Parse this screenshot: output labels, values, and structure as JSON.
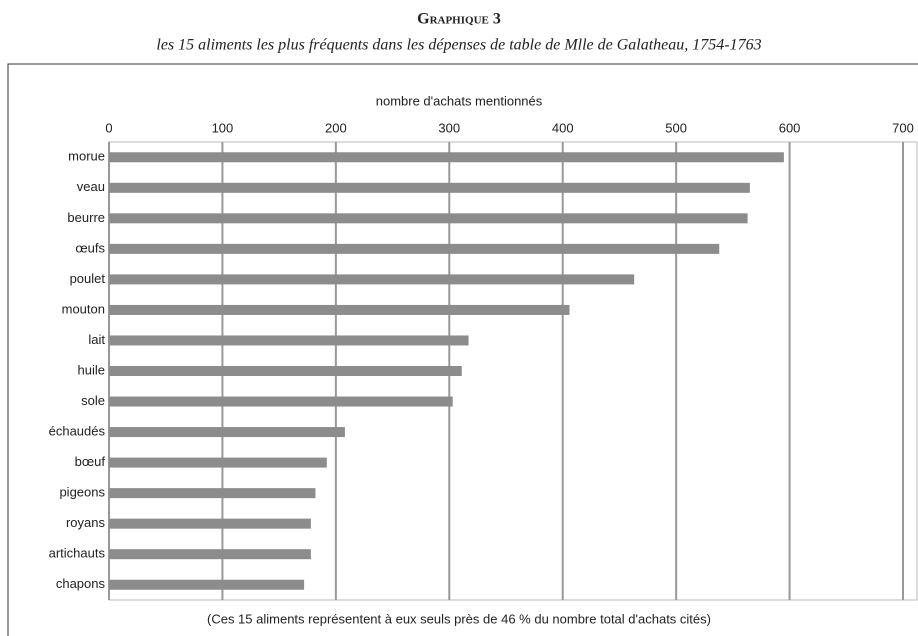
{
  "chart_data": {
    "type": "bar",
    "orientation": "horizontal",
    "title": "Graphique 3",
    "subtitle": "les 15 aliments les plus fréquents dans les dépenses de table de Mlle de Galatheau, 1754-1763",
    "x_label": "nombre d'achats mentionnés",
    "note": "(Ces 15 aliments représentent à eux seuls près de 46 % du nombre total d'achats cités)",
    "categories": [
      "morue",
      "veau",
      "beurre",
      "œufs",
      "poulet",
      "mouton",
      "lait",
      "huile",
      "sole",
      "échaudés",
      "bœuf",
      "pigeons",
      "royans",
      "artichauts",
      "chapons"
    ],
    "values": [
      595,
      565,
      563,
      538,
      463,
      406,
      317,
      311,
      303,
      208,
      192,
      182,
      178,
      178,
      172
    ],
    "color": "#8c8c8c",
    "xlim": [
      0,
      700
    ],
    "xticks": [
      0,
      100,
      200,
      300,
      400,
      500,
      600,
      700
    ],
    "grid": true
  }
}
